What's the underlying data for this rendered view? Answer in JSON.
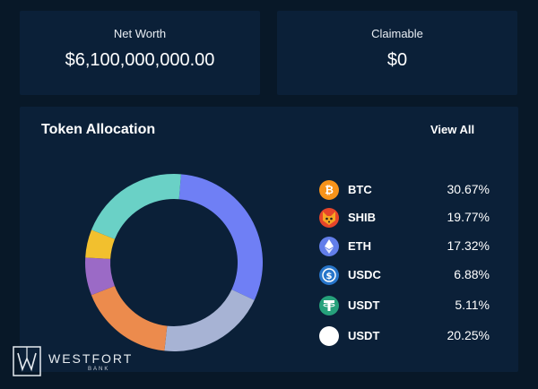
{
  "networth": {
    "label": "Net Worth",
    "value": "$6,100,000,000.00"
  },
  "claimable": {
    "label": "Claimable",
    "value": "$0"
  },
  "allocation": {
    "title": "Token Allocation",
    "view_all": "View All",
    "tokens": [
      {
        "symbol": "BTC",
        "percent": "30.67%",
        "icon": "bitcoin-icon",
        "color": "#f7931a"
      },
      {
        "symbol": "SHIB",
        "percent": "19.77%",
        "icon": "shiba-icon",
        "color": "#e6452a"
      },
      {
        "symbol": "ETH",
        "percent": "17.32%",
        "icon": "ethereum-icon",
        "color": "#627eea"
      },
      {
        "symbol": "USDC",
        "percent": "6.88%",
        "icon": "usdc-icon",
        "color": "#2775ca"
      },
      {
        "symbol": "USDT",
        "percent": "5.11%",
        "icon": "tether-icon",
        "color": "#26a17b"
      },
      {
        "symbol": "USDT",
        "percent": "20.25%",
        "icon": "white-dot-icon",
        "color": "#ffffff"
      }
    ]
  },
  "chart_data": {
    "type": "pie",
    "categories": [
      "BTC",
      "SHIB",
      "ETH",
      "USDC",
      "USDT",
      "USDT"
    ],
    "values": [
      30.67,
      19.77,
      17.32,
      6.88,
      5.11,
      20.25
    ],
    "colors": [
      "#6f7ff5",
      "#a7b3d4",
      "#ec8b4d",
      "#9b6ac6",
      "#f2c02e",
      "#6ad1c6"
    ],
    "title": "Token Allocation",
    "grid": false
  },
  "brand": {
    "name": "WESTFORT",
    "sub": "BANK"
  },
  "colors": {
    "background": "#081828",
    "card": "#0b2038"
  }
}
